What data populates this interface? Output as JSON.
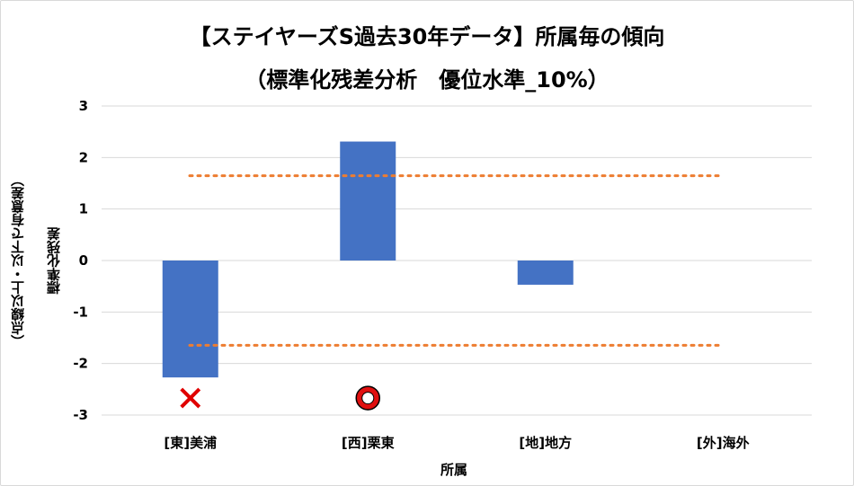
{
  "chart_data": {
    "type": "bar",
    "title": "【ステイヤーズS過去30年データ】所属毎の傾向",
    "subtitle": "（標準化残差分析　優位水準_10%）",
    "xlabel": "所属",
    "ylabel": "標準化残差",
    "ylabel_note": "（点線以上・以下で有意差）",
    "categories": [
      "[東]美浦",
      "[西]栗東",
      "[地]地方",
      "[外]海外"
    ],
    "values": [
      -2.27,
      2.31,
      -0.47,
      0
    ],
    "ylim": [
      -3,
      3
    ],
    "yticks": [
      3,
      2,
      1,
      0,
      -1,
      -2,
      -3
    ],
    "significance_lines": [
      1.645,
      -1.645
    ],
    "grid": true,
    "legend": "none",
    "markers": [
      {
        "category": "[東]美浦",
        "symbol": "cross",
        "meaning": "不利"
      },
      {
        "category": "[西]栗東",
        "symbol": "circle",
        "meaning": "有利"
      }
    ],
    "colors": {
      "bar": "#4472c4",
      "significance_line": "#ed7d31",
      "grid": "#d9d9d9",
      "marker": "#e00000"
    }
  }
}
